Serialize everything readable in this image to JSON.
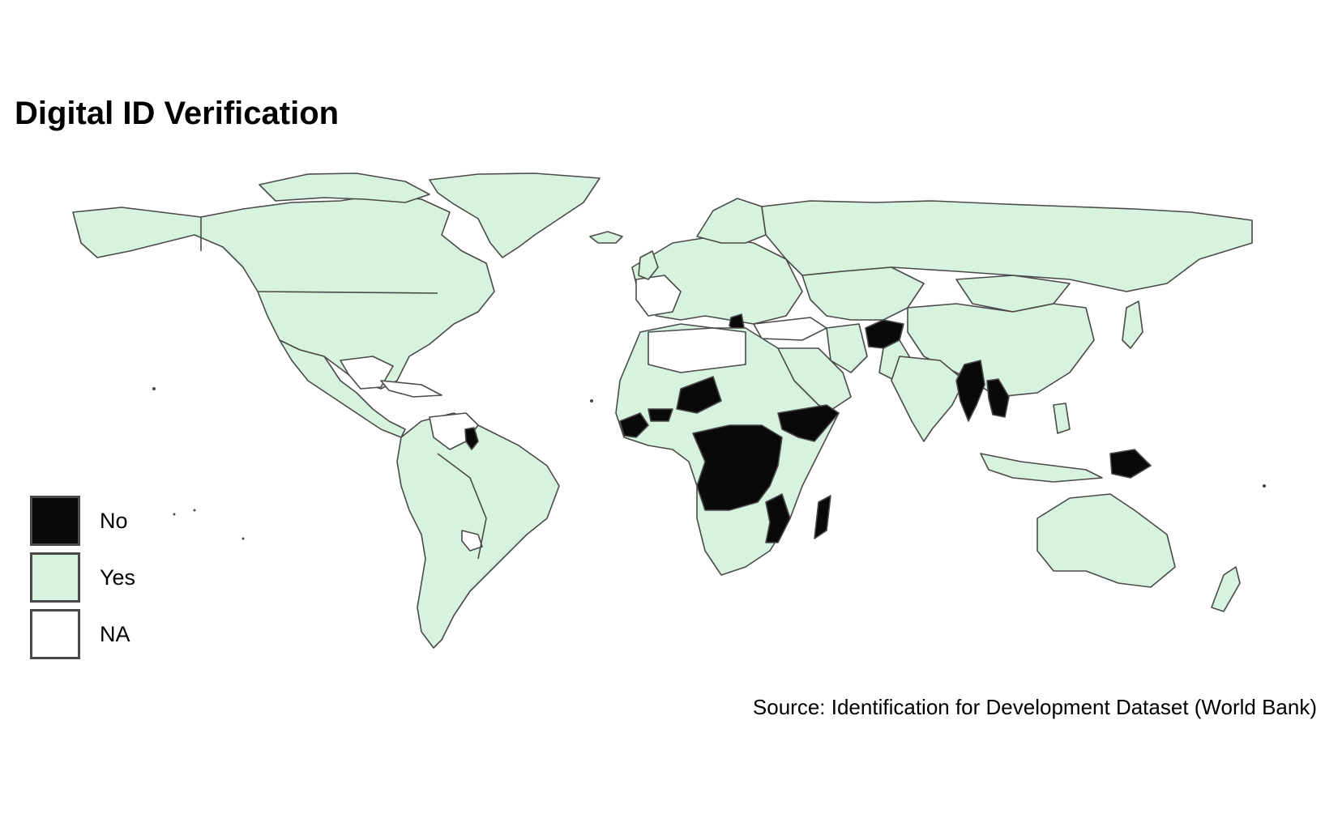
{
  "title": "Digital ID Verification",
  "caption": "Source: Identification for Development Dataset (World Bank)",
  "colors": {
    "no": "#0b0809",
    "yes": "#d8f2e0",
    "na": "#ffffff",
    "border": "#4a4a4a"
  },
  "legend": [
    {
      "label": "No",
      "category": "no"
    },
    {
      "label": "Yes",
      "category": "yes"
    },
    {
      "label": "NA",
      "category": "na"
    }
  ],
  "regions": {
    "yes": [
      "North America",
      "Greenland",
      "Iceland",
      "Russia",
      "Central Asia",
      "China",
      "Mongolia",
      "India",
      "Pakistan",
      "Iran",
      "Arabian Peninsula",
      "Egypt",
      "Sudan",
      "Mali",
      "Senegal",
      "Nigeria",
      "Cameroon",
      "Ethiopia",
      "Kenya",
      "Tanzania",
      "Zambia",
      "Southern Africa",
      "Brazil",
      "South America",
      "Mexico",
      "Indonesia",
      "Philippines",
      "Japan",
      "Australia",
      "New Zealand",
      "Europe"
    ],
    "no": [
      "Niger",
      "Guinea",
      "Liberia",
      "Sierra Leone",
      "Burkina Faso",
      "Central African Republic",
      "South Sudan",
      "Somalia",
      "DR Congo",
      "Congo",
      "Gabon",
      "Angola",
      "Malawi",
      "Mozambique",
      "Madagascar",
      "Afghanistan",
      "Myanmar",
      "Laos",
      "Cambodia",
      "Papua New Guinea",
      "Guyana",
      "Greece"
    ],
    "na": [
      "Cuba",
      "Venezuela",
      "Colombia",
      "Algeria",
      "Libya",
      "Chad",
      "Central America",
      "Turkey",
      "Iraq",
      "Syria",
      "Saudi north",
      "Uruguay",
      "Western Europe"
    ]
  }
}
